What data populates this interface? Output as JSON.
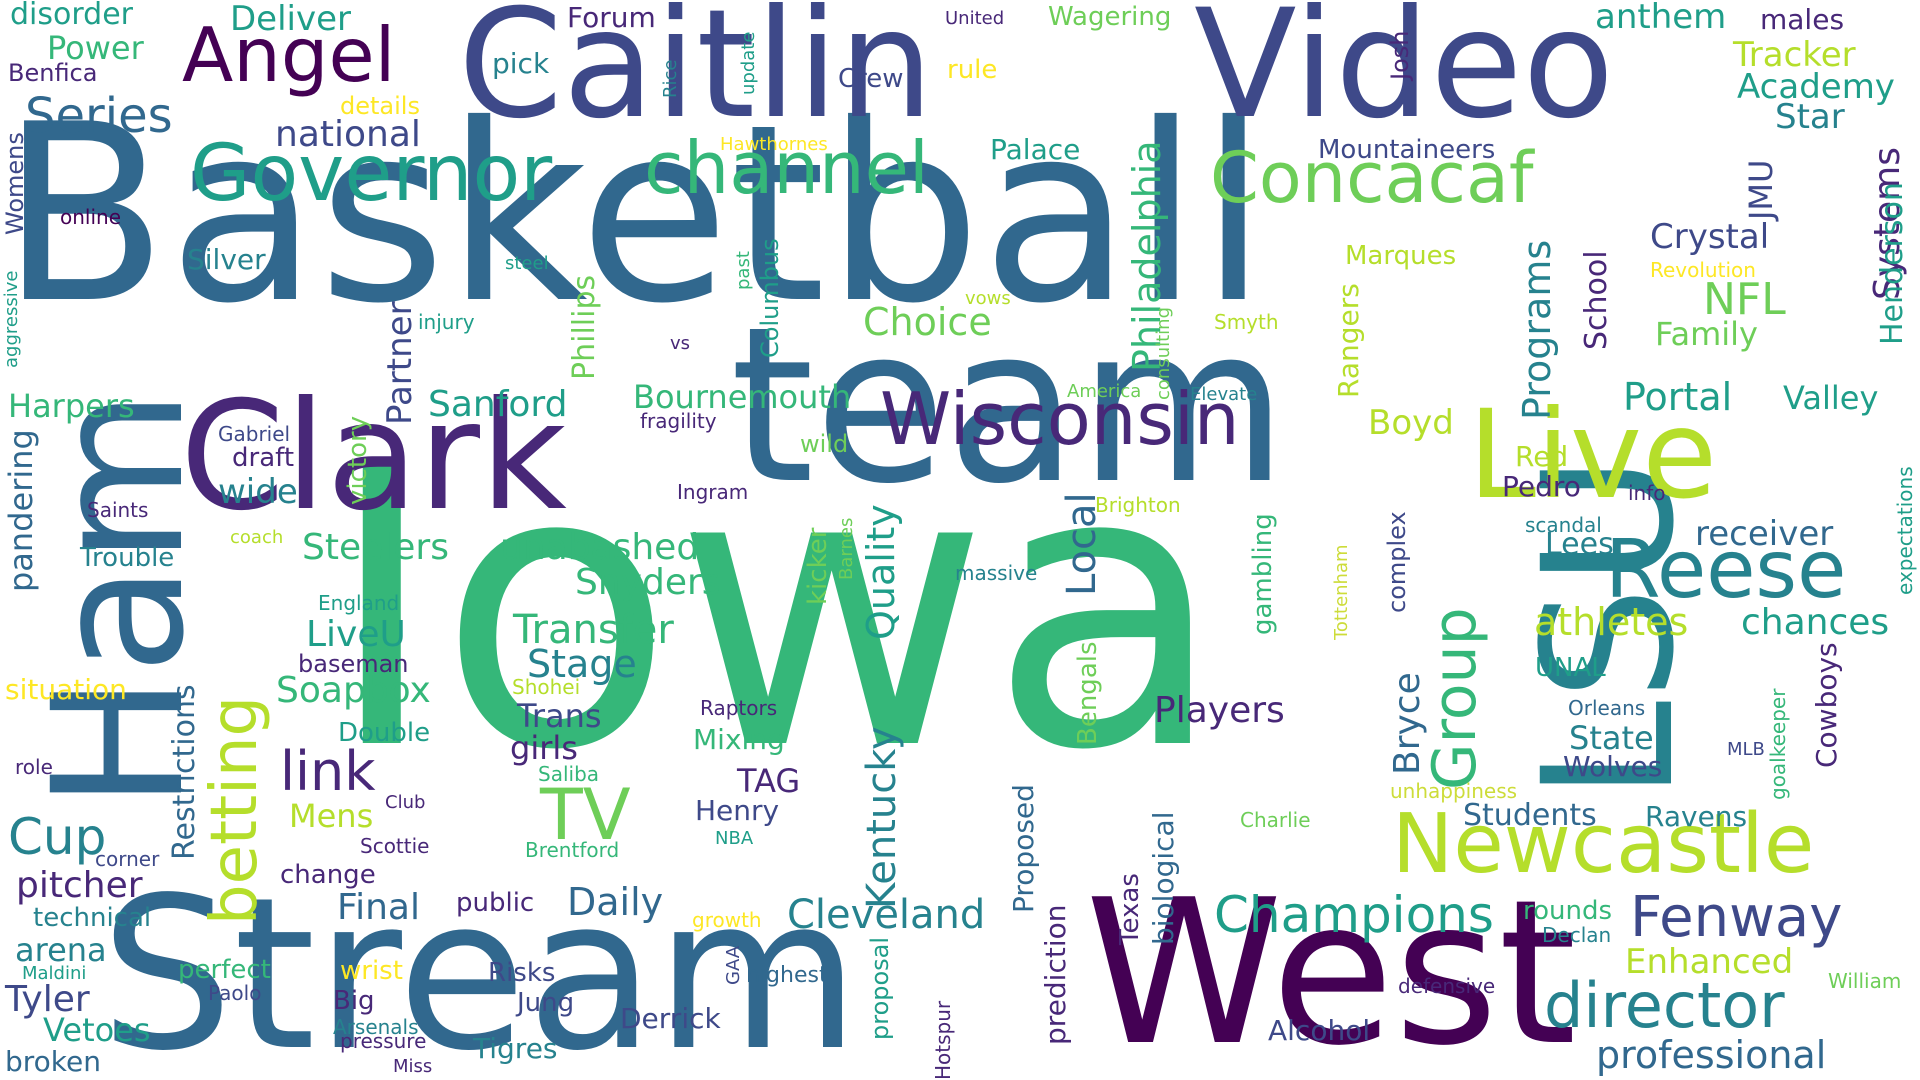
{
  "palette": {
    "c0": "#440154",
    "c1": "#482878",
    "c2": "#3e4989",
    "c3": "#31688e",
    "c4": "#26828e",
    "c5": "#1f9e89",
    "c6": "#35b779",
    "c7": "#6ece58",
    "c8": "#b5de2b",
    "c9": "#fde725",
    "c10": "#cddc39"
  },
  "words": [
    {
      "text": "Basketball",
      "color": "c3"
    },
    {
      "text": "Iowa",
      "color": "c6"
    },
    {
      "text": "team",
      "color": "c3"
    },
    {
      "text": "Stream",
      "color": "c3"
    },
    {
      "text": "West",
      "color": "c0"
    },
    {
      "text": "Caitlin",
      "color": "c2"
    },
    {
      "text": "Video",
      "color": "c2"
    },
    {
      "text": "Clark",
      "color": "c1"
    },
    {
      "text": "LSU",
      "color": "c4"
    },
    {
      "text": "Ham",
      "color": "c3"
    },
    {
      "text": "Live",
      "color": "c8"
    },
    {
      "text": "Newcastle",
      "color": "c8"
    },
    {
      "text": "Reese",
      "color": "c4"
    },
    {
      "text": "Angel",
      "color": "c0"
    },
    {
      "text": "Governor",
      "color": "c5"
    },
    {
      "text": "channel",
      "color": "c6"
    },
    {
      "text": "Concacaf",
      "color": "c7"
    },
    {
      "text": "Wisconsin",
      "color": "c1"
    },
    {
      "text": "director",
      "color": "c4"
    },
    {
      "text": "Fenway",
      "color": "c2"
    },
    {
      "text": "betting",
      "color": "c8"
    },
    {
      "text": "Group",
      "color": "c6"
    },
    {
      "text": "Champions",
      "color": "c5"
    },
    {
      "text": "TV",
      "color": "c7"
    },
    {
      "text": "link",
      "color": "c1"
    },
    {
      "text": "Series",
      "color": "c3"
    },
    {
      "text": "Cup",
      "color": "c4"
    },
    {
      "text": "national",
      "color": "c2"
    },
    {
      "text": "Systems",
      "color": "c1"
    },
    {
      "text": "Programs",
      "color": "c4"
    },
    {
      "text": "Philadelphia",
      "color": "c6"
    },
    {
      "text": "professional",
      "color": "c3"
    },
    {
      "text": "Cleveland",
      "color": "c4"
    },
    {
      "text": "Kentucky",
      "color": "c4"
    },
    {
      "text": "Local",
      "color": "c3"
    },
    {
      "text": "Quality",
      "color": "c5"
    },
    {
      "text": "Transfer",
      "color": "c6"
    },
    {
      "text": "Steelers",
      "color": "c6"
    },
    {
      "text": "unabashed",
      "color": "c6"
    },
    {
      "text": "Snyders",
      "color": "c6"
    },
    {
      "text": "Portal",
      "color": "c5"
    },
    {
      "text": "Valley",
      "color": "c5"
    },
    {
      "text": "NFL",
      "color": "c7"
    },
    {
      "text": "Family",
      "color": "c7"
    },
    {
      "text": "Crystal",
      "color": "c2"
    },
    {
      "text": "School",
      "color": "c1"
    },
    {
      "text": "JMU",
      "color": "c2"
    },
    {
      "text": "Henderson",
      "color": "c5"
    },
    {
      "text": "Star",
      "color": "c4"
    },
    {
      "text": "Academy",
      "color": "c5"
    },
    {
      "text": "Tracker",
      "color": "c8"
    },
    {
      "text": "anthem",
      "color": "c5"
    },
    {
      "text": "males",
      "color": "c1"
    },
    {
      "text": "Mountaineers",
      "color": "c2"
    },
    {
      "text": "Palace",
      "color": "c5"
    },
    {
      "text": "Choice",
      "color": "c7"
    },
    {
      "text": "Phillips",
      "color": "c7"
    },
    {
      "text": "Partner",
      "color": "c2"
    },
    {
      "text": "Sanford",
      "color": "c5"
    },
    {
      "text": "Bournemouth",
      "color": "c6"
    },
    {
      "text": "Boyd",
      "color": "c8"
    },
    {
      "text": "Marques",
      "color": "c8"
    },
    {
      "text": "Rangers",
      "color": "c8"
    },
    {
      "text": "Harpers",
      "color": "c6"
    },
    {
      "text": "pandering",
      "color": "c3"
    },
    {
      "text": "Restrictions",
      "color": "c3"
    },
    {
      "text": "Players",
      "color": "c1"
    },
    {
      "text": "Bryce",
      "color": "c3"
    },
    {
      "text": "Students",
      "color": "c3"
    },
    {
      "text": "Ravens",
      "color": "c4"
    },
    {
      "text": "State",
      "color": "c4"
    },
    {
      "text": "Wolves",
      "color": "c2"
    },
    {
      "text": "Cowboys",
      "color": "c1"
    },
    {
      "text": "athletes",
      "color": "c8"
    },
    {
      "text": "chances",
      "color": "c5"
    },
    {
      "text": "receiver",
      "color": "c3"
    },
    {
      "text": "Lees",
      "color": "c4"
    },
    {
      "text": "Enhanced",
      "color": "c8"
    },
    {
      "text": "rounds",
      "color": "c6"
    },
    {
      "text": "Daily",
      "color": "c3"
    },
    {
      "text": "Final",
      "color": "c3"
    },
    {
      "text": "Stage",
      "color": "c4"
    },
    {
      "text": "Soapbox",
      "color": "c6"
    },
    {
      "text": "LiveU",
      "color": "c5"
    },
    {
      "text": "Trans",
      "color": "c2"
    },
    {
      "text": "girls",
      "color": "c1"
    },
    {
      "text": "Mens",
      "color": "c8"
    },
    {
      "text": "pitcher",
      "color": "c1"
    },
    {
      "text": "Tyler",
      "color": "c2"
    },
    {
      "text": "Vetoes",
      "color": "c5"
    },
    {
      "text": "arena",
      "color": "c4"
    },
    {
      "text": "broken",
      "color": "c3"
    },
    {
      "text": "Alcohol",
      "color": "c2"
    },
    {
      "text": "Derrick",
      "color": "c2"
    },
    {
      "text": "Tigres",
      "color": "c4"
    },
    {
      "text": "Jung",
      "color": "c2"
    },
    {
      "text": "Risks",
      "color": "c2"
    },
    {
      "text": "Big",
      "color": "c1"
    },
    {
      "text": "wrist",
      "color": "c9"
    },
    {
      "text": "perfect",
      "color": "c6"
    },
    {
      "text": "technical",
      "color": "c4"
    },
    {
      "text": "Power",
      "color": "c6"
    },
    {
      "text": "Deliver",
      "color": "c5"
    },
    {
      "text": "disorder",
      "color": "c5"
    },
    {
      "text": "Forum",
      "color": "c1"
    },
    {
      "text": "pick",
      "color": "c4"
    },
    {
      "text": "Crew",
      "color": "c2"
    },
    {
      "text": "rule",
      "color": "c9"
    },
    {
      "text": "Wagering",
      "color": "c7"
    },
    {
      "text": "Benfica",
      "color": "c1"
    },
    {
      "text": "Womens",
      "color": "c2"
    },
    {
      "text": "Silver",
      "color": "c4"
    },
    {
      "text": "online",
      "color": "c0"
    },
    {
      "text": "Trouble",
      "color": "c4"
    },
    {
      "text": "situation",
      "color": "c9"
    },
    {
      "text": "Double",
      "color": "c5"
    },
    {
      "text": "draft",
      "color": "c1"
    },
    {
      "text": "wide",
      "color": "c4"
    },
    {
      "text": "victory",
      "color": "c7"
    },
    {
      "text": "baseman",
      "color": "c1"
    },
    {
      "text": "change",
      "color": "c1"
    },
    {
      "text": "public",
      "color": "c1"
    },
    {
      "text": "TAG",
      "color": "c1"
    },
    {
      "text": "Henry",
      "color": "c2"
    },
    {
      "text": "Mixing",
      "color": "c6"
    },
    {
      "text": "Proposed",
      "color": "c3"
    },
    {
      "text": "prediction",
      "color": "c1"
    },
    {
      "text": "Texas",
      "color": "c1"
    },
    {
      "text": "biological",
      "color": "c3"
    },
    {
      "text": "Bengals",
      "color": "c7"
    },
    {
      "text": "kicker",
      "color": "c7"
    },
    {
      "text": "gambling",
      "color": "c6"
    },
    {
      "text": "complex",
      "color": "c2"
    },
    {
      "text": "Pedro",
      "color": "c1"
    },
    {
      "text": "Red",
      "color": "c8"
    },
    {
      "text": "info",
      "color": "c1"
    },
    {
      "text": "expectations",
      "color": "c5"
    },
    {
      "text": "Hotspur",
      "color": "c1"
    },
    {
      "text": "proposal",
      "color": "c5"
    },
    {
      "text": "highest",
      "color": "c3"
    },
    {
      "text": "defensive",
      "color": "c1"
    },
    {
      "text": "William",
      "color": "c7"
    },
    {
      "text": "Declan",
      "color": "c4"
    },
    {
      "text": "goalkeeper",
      "color": "c6"
    },
    {
      "text": "MLB",
      "color": "c2"
    },
    {
      "text": "Orleans",
      "color": "c3"
    },
    {
      "text": "UNAL",
      "color": "c5"
    },
    {
      "text": "unhappiness",
      "color": "c10"
    },
    {
      "text": "Charlie",
      "color": "c7"
    },
    {
      "text": "Tottenham",
      "color": "c10"
    },
    {
      "text": "scandal",
      "color": "c4"
    },
    {
      "text": "massive",
      "color": "c4"
    },
    {
      "text": "Brighton",
      "color": "c8"
    },
    {
      "text": "Barnes",
      "color": "c7"
    },
    {
      "text": "Ingram",
      "color": "c1"
    },
    {
      "text": "fragility",
      "color": "c1"
    },
    {
      "text": "wild",
      "color": "c7"
    },
    {
      "text": "America",
      "color": "c7"
    },
    {
      "text": "Elevate",
      "color": "c4"
    },
    {
      "text": "consulting",
      "color": "c7"
    },
    {
      "text": "Smyth",
      "color": "c8"
    },
    {
      "text": "vows",
      "color": "c8"
    },
    {
      "text": "vs",
      "color": "c1"
    },
    {
      "text": "past",
      "color": "c6"
    },
    {
      "text": "Columbus",
      "color": "c5"
    },
    {
      "text": "steel",
      "color": "c5"
    },
    {
      "text": "injury",
      "color": "c5"
    },
    {
      "text": "aggressive",
      "color": "c5"
    },
    {
      "text": "Gabriel",
      "color": "c2"
    },
    {
      "text": "Saints",
      "color": "c1"
    },
    {
      "text": "coach",
      "color": "c8"
    },
    {
      "text": "England",
      "color": "c5"
    },
    {
      "text": "Shohei",
      "color": "c8"
    },
    {
      "text": "Raptors",
      "color": "c1"
    },
    {
      "text": "Saliba",
      "color": "c6"
    },
    {
      "text": "role",
      "color": "c1"
    },
    {
      "text": "Club",
      "color": "c1"
    },
    {
      "text": "Scottie",
      "color": "c1"
    },
    {
      "text": "Brentford",
      "color": "c6"
    },
    {
      "text": "NBA",
      "color": "c5"
    },
    {
      "text": "corner",
      "color": "c2"
    },
    {
      "text": "Maldini",
      "color": "c5"
    },
    {
      "text": "Paolo",
      "color": "c2"
    },
    {
      "text": "Arsenals",
      "color": "c4"
    },
    {
      "text": "pressure",
      "color": "c1"
    },
    {
      "text": "Miss",
      "color": "c1"
    },
    {
      "text": "growth",
      "color": "c9"
    },
    {
      "text": "GAA",
      "color": "c2"
    },
    {
      "text": "Hawthornes",
      "color": "c9"
    },
    {
      "text": "details",
      "color": "c9"
    },
    {
      "text": "Josh",
      "color": "c1"
    },
    {
      "text": "update",
      "color": "c5"
    },
    {
      "text": "United",
      "color": "c1"
    },
    {
      "text": "Rice",
      "color": "c4"
    },
    {
      "text": "Revolution",
      "color": "c9"
    }
  ]
}
